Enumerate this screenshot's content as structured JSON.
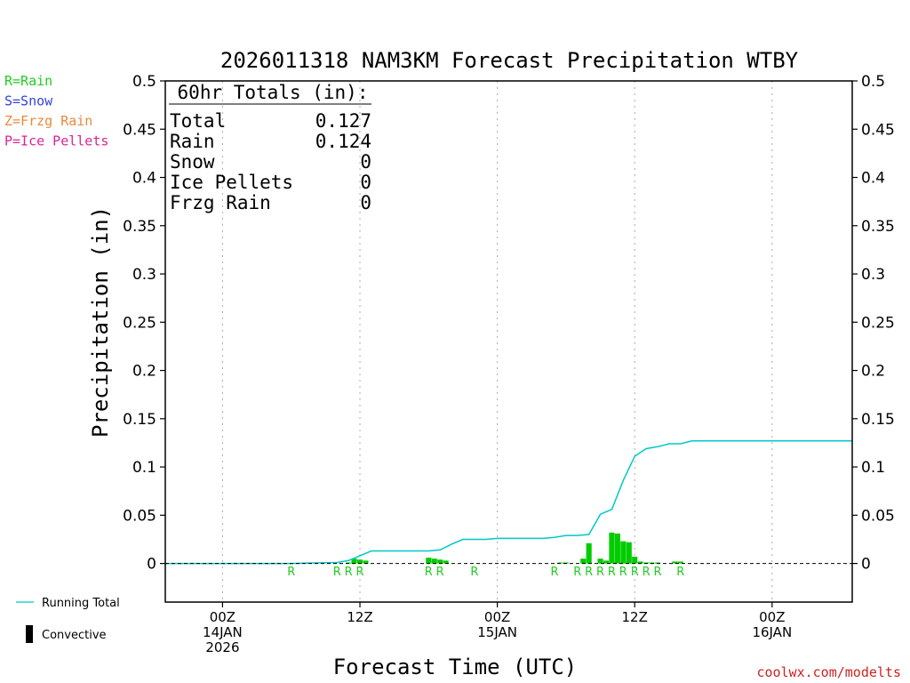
{
  "chart_data": {
    "type": "bar",
    "title": "2026011318 NAM3KM Forecast Precipitation WTBY",
    "xlabel": "Forecast Time (UTC)",
    "ylabel": "Precipitation (in)",
    "ylim": [
      -0.04,
      0.5
    ],
    "xlim": [
      -5,
      55
    ],
    "yticks": [
      0,
      0.05,
      0.1,
      0.15,
      0.2,
      0.25,
      0.3,
      0.35,
      0.4,
      0.45,
      0.5
    ],
    "ytick_labels": [
      "0",
      "0.05",
      "0.1",
      "0.15",
      "0.2",
      "0.25",
      "0.3",
      "0.35",
      "0.4",
      "0.45",
      "0.5"
    ],
    "xticks": [
      {
        "hour": 0,
        "lines": [
          "00Z",
          "14JAN",
          "2026"
        ]
      },
      {
        "hour": 12,
        "lines": [
          "12Z"
        ]
      },
      {
        "hour": 24,
        "lines": [
          "00Z",
          "15JAN"
        ]
      },
      {
        "hour": 36,
        "lines": [
          "12Z"
        ]
      },
      {
        "hour": 48,
        "lines": [
          "00Z",
          "16JAN"
        ]
      }
    ],
    "vgrid_hours": [
      0,
      12,
      24,
      36,
      48
    ],
    "legend": [
      {
        "label": "R=Rain",
        "color": "#22cc22"
      },
      {
        "label": "S=Snow",
        "color": "#3344dd"
      },
      {
        "label": "Z=Frzg Rain",
        "color": "#e88a3a"
      },
      {
        "label": "P=Ice Pellets",
        "color": "#dd2299"
      }
    ],
    "totals_box": {
      "header": "60hr Totals (in):",
      "rows": [
        {
          "label": "Total",
          "value": "0.127"
        },
        {
          "label": "Rain",
          "value": "0.124"
        },
        {
          "label": "Snow",
          "value": "0"
        },
        {
          "label": "Ice Pellets",
          "value": "0"
        },
        {
          "label": "Frzg Rain",
          "value": "0"
        }
      ]
    },
    "series": [
      {
        "name": "Hourly Precipitation",
        "type": "bar",
        "color": "#00cc00",
        "hours": [
          11,
          11.5,
          12,
          12.5,
          18,
          18.5,
          19,
          19.5,
          29.5,
          30,
          31.5,
          32,
          33,
          33.5,
          34,
          34.5,
          35,
          35.5,
          36,
          36.5,
          37,
          37.5,
          38,
          39.5,
          40
        ],
        "values": [
          0.001,
          0.005,
          0.004,
          0.003,
          0.006,
          0.005,
          0.004,
          0.003,
          0.001,
          0.001,
          0.005,
          0.021,
          0.005,
          0.003,
          0.032,
          0.031,
          0.023,
          0.022,
          0.007,
          0.002,
          0.001,
          0.001,
          0.001,
          0.002,
          0.002
        ]
      },
      {
        "name": "Running Total",
        "type": "line",
        "color": "#00c8c8",
        "x": [
          -5,
          6,
          8,
          10,
          11,
          12,
          13,
          14,
          15,
          16,
          17,
          18,
          19,
          20,
          21,
          22,
          23,
          24,
          27,
          28,
          29,
          30,
          31,
          32,
          33,
          34,
          35,
          36,
          37,
          38,
          39,
          40,
          41,
          42,
          55
        ],
        "y": [
          0,
          0,
          0.0005,
          0.001,
          0.003,
          0.008,
          0.013,
          0.013,
          0.013,
          0.013,
          0.013,
          0.013,
          0.014,
          0.02,
          0.025,
          0.025,
          0.025,
          0.026,
          0.026,
          0.026,
          0.027,
          0.029,
          0.029,
          0.03,
          0.051,
          0.056,
          0.086,
          0.111,
          0.119,
          0.121,
          0.124,
          0.124,
          0.127,
          0.127,
          0.127
        ]
      }
    ],
    "precip_type_markers": {
      "letter": "R",
      "color": "#22cc22",
      "hours": [
        6,
        10,
        11,
        12,
        18,
        19,
        22,
        29,
        31,
        32,
        33,
        34,
        35,
        36,
        37,
        38,
        40
      ]
    },
    "bottom_legend": {
      "running_total": "Running Total",
      "convective": "Convective"
    },
    "credit": "coolwx.com/modelts"
  }
}
